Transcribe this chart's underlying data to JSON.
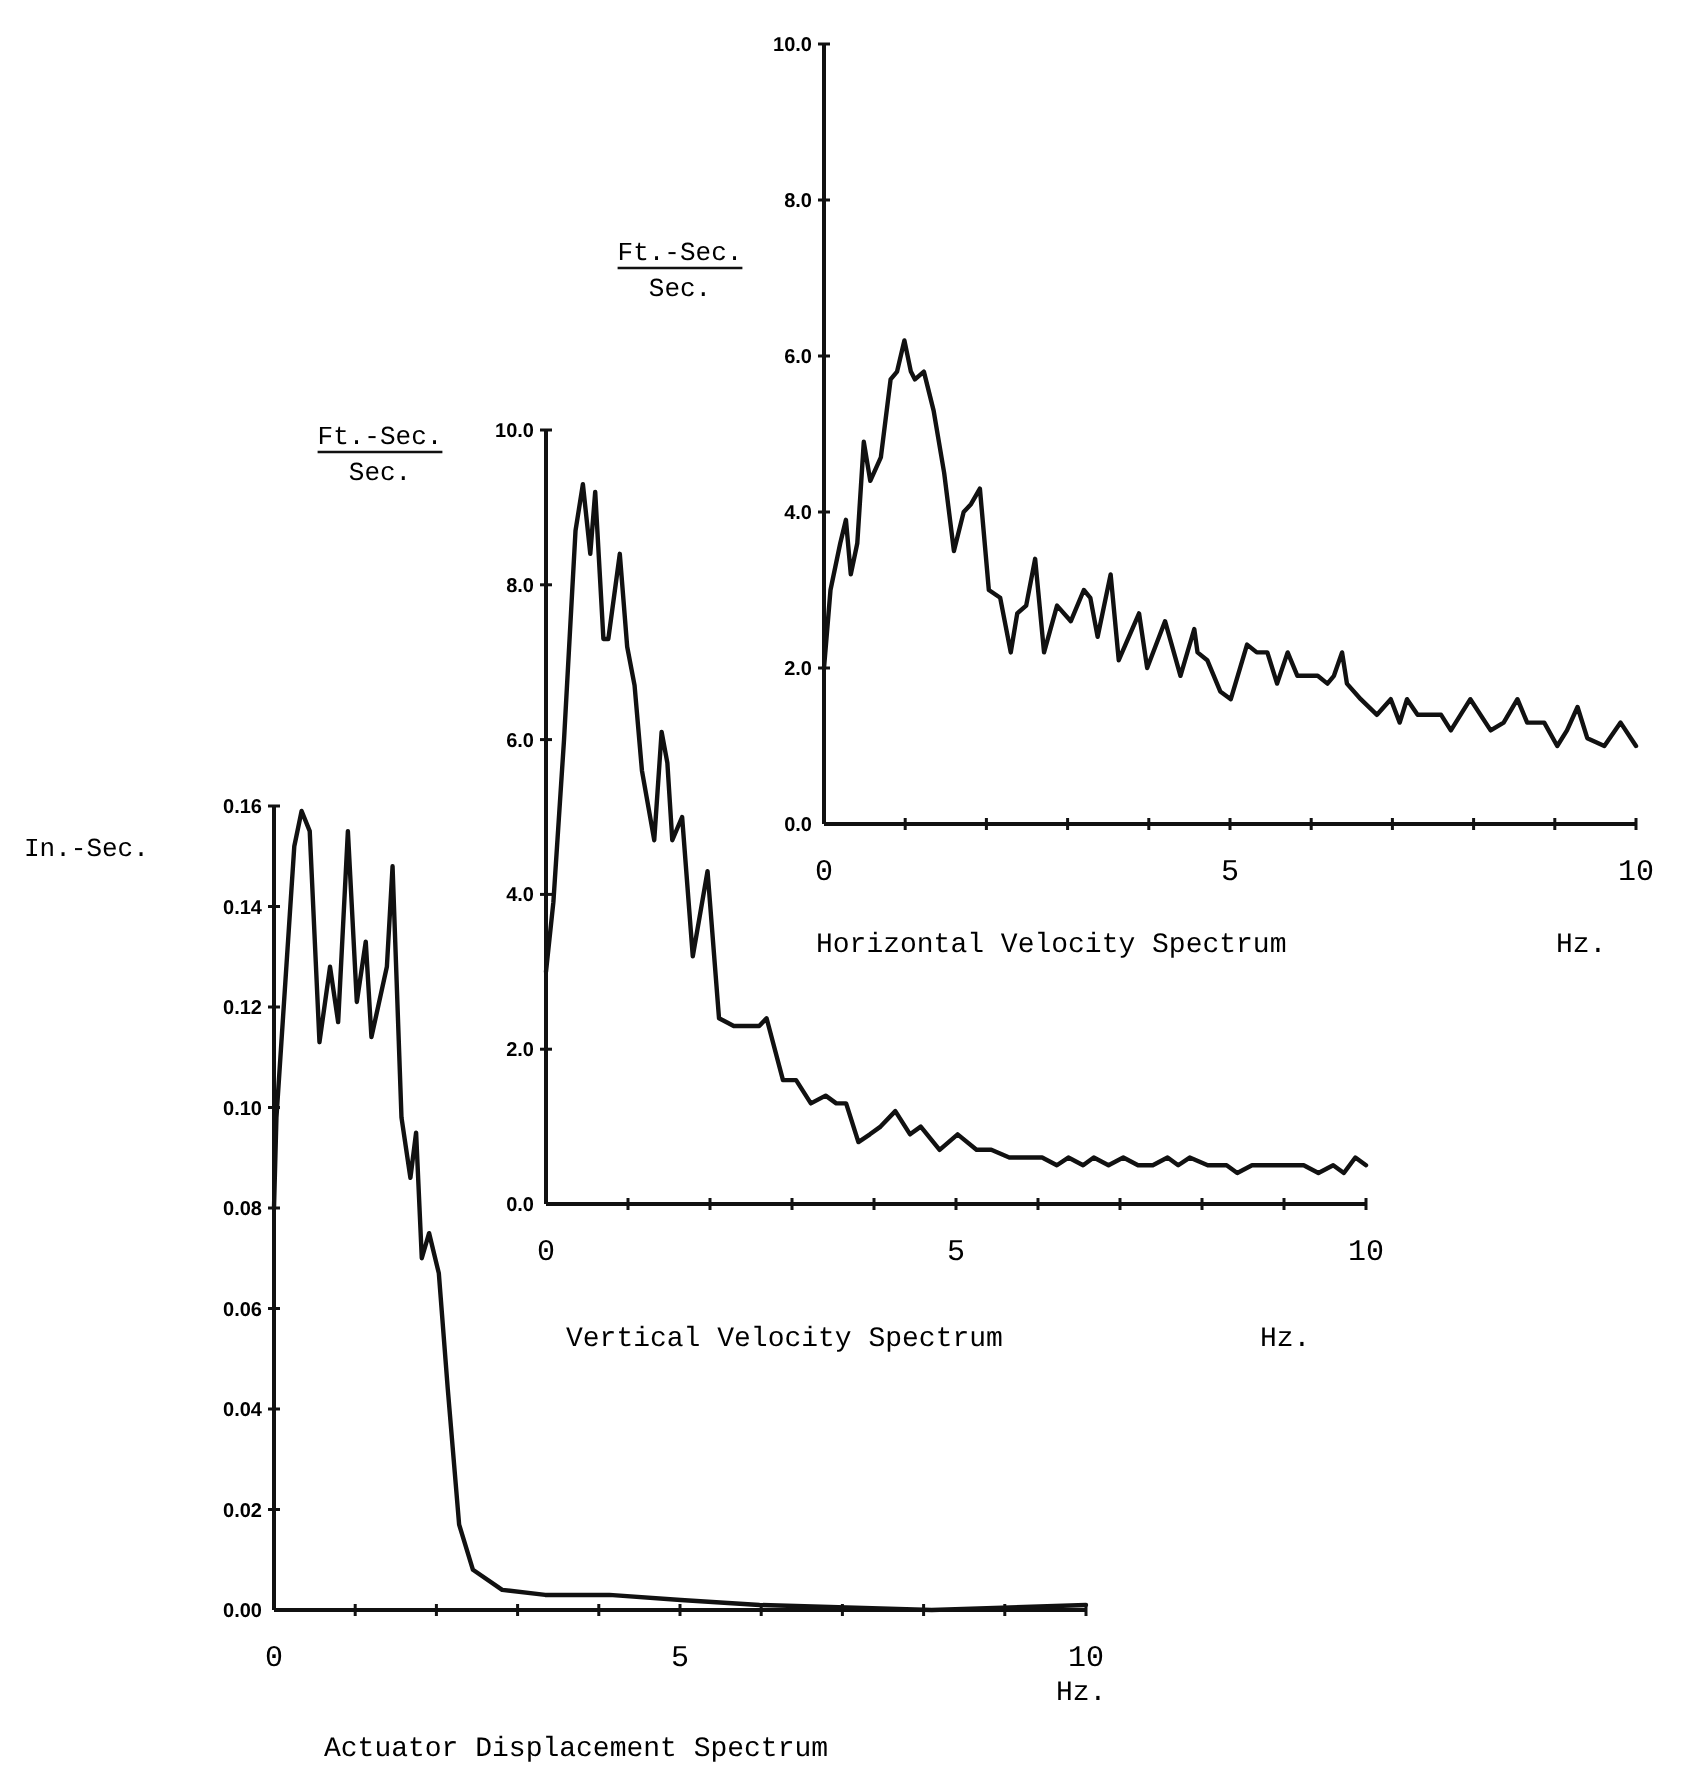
{
  "chart_data": [
    {
      "type": "line",
      "title": "Horizontal Velocity Spectrum",
      "xlabel": "Hz.",
      "ylabel": "Ft.-Sec.\nSec.",
      "color": "#111111",
      "x": [
        0,
        0.08,
        0.2,
        0.27,
        0.33,
        0.41,
        0.49,
        0.57,
        0.7,
        0.82,
        0.9,
        0.99,
        1.07,
        1.12,
        1.23,
        1.35,
        1.48,
        1.6,
        1.72,
        1.81,
        1.92,
        2.03,
        2.17,
        2.3,
        2.38,
        2.49,
        2.6,
        2.71,
        2.87,
        3.04,
        3.2,
        3.28,
        3.37,
        3.53,
        3.63,
        3.88,
        3.98,
        4.2,
        4.39,
        4.56,
        4.6,
        4.72,
        4.88,
        5.01,
        5.21,
        5.33,
        5.46,
        5.58,
        5.71,
        5.83,
        6.08,
        6.2,
        6.28,
        6.38,
        6.44,
        6.61,
        6.81,
        6.98,
        7.09,
        7.18,
        7.31,
        7.6,
        7.72,
        7.96,
        8.21,
        8.37,
        8.54,
        8.66,
        8.87,
        9.03,
        9.15,
        9.28,
        9.4,
        9.61,
        9.81,
        10
      ],
      "values": [
        2.0,
        3.0,
        3.6,
        3.9,
        3.2,
        3.6,
        4.9,
        4.4,
        4.7,
        5.7,
        5.8,
        6.2,
        5.8,
        5.7,
        5.8,
        5.3,
        4.5,
        3.5,
        4.0,
        4.1,
        4.3,
        3.0,
        2.9,
        2.2,
        2.7,
        2.8,
        3.4,
        2.2,
        2.8,
        2.6,
        3.0,
        2.9,
        2.4,
        3.2,
        2.1,
        2.7,
        2.0,
        2.6,
        1.9,
        2.5,
        2.2,
        2.1,
        1.7,
        1.6,
        2.3,
        2.2,
        2.2,
        1.8,
        2.2,
        1.9,
        1.9,
        1.8,
        1.9,
        2.2,
        1.8,
        1.6,
        1.4,
        1.6,
        1.3,
        1.6,
        1.4,
        1.4,
        1.2,
        1.6,
        1.2,
        1.3,
        1.6,
        1.3,
        1.3,
        1.0,
        1.2,
        1.5,
        1.1,
        1.0,
        1.3,
        1.0
      ],
      "xlim": [
        0,
        10
      ],
      "ylim": [
        0,
        10
      ],
      "xticks": [
        0,
        {
          "value": 1,
          "label": null
        },
        {
          "value": 2,
          "label": null
        },
        {
          "value": 3,
          "label": null
        },
        {
          "value": 4,
          "label": null
        },
        5,
        {
          "value": 6,
          "label": null
        },
        {
          "value": 7,
          "label": null
        },
        {
          "value": 8,
          "label": null
        },
        {
          "value": 9,
          "label": null
        },
        10
      ],
      "yticks": [
        {
          "value": 0,
          "label": "0.0"
        },
        {
          "value": 2,
          "label": "2.0"
        },
        {
          "value": 4,
          "label": "4.0"
        },
        {
          "value": 6,
          "label": "6.0"
        },
        {
          "value": 8,
          "label": "8.0"
        },
        {
          "value": 10,
          "label": "10.0"
        }
      ]
    },
    {
      "type": "line",
      "title": "Vertical Velocity Spectrum",
      "xlabel": "Hz.",
      "ylabel": "Ft.-Sec.\nSec.",
      "color": "#111111",
      "x": [
        0,
        0.09,
        0.22,
        0.36,
        0.45,
        0.54,
        0.6,
        0.7,
        0.76,
        0.9,
        0.99,
        1.08,
        1.17,
        1.32,
        1.41,
        1.48,
        1.54,
        1.66,
        1.79,
        1.97,
        2.11,
        2.29,
        2.6,
        2.69,
        2.89,
        3.05,
        3.23,
        3.41,
        3.54,
        3.66,
        3.81,
        3.95,
        4.08,
        4.26,
        4.44,
        4.57,
        4.8,
        5.02,
        5.25,
        5.43,
        5.65,
        5.83,
        6.05,
        6.23,
        6.37,
        6.55,
        6.68,
        6.86,
        7.04,
        7.22,
        7.4,
        7.58,
        7.71,
        7.85,
        8.07,
        8.3,
        8.43,
        8.61,
        8.97,
        9.24,
        9.42,
        9.6,
        9.73,
        9.87,
        10
      ],
      "values": [
        3.0,
        3.9,
        6.0,
        8.7,
        9.3,
        8.4,
        9.2,
        7.3,
        7.3,
        8.4,
        7.2,
        6.7,
        5.6,
        4.7,
        6.1,
        5.7,
        4.7,
        5.0,
        3.2,
        4.3,
        2.4,
        2.3,
        2.3,
        2.4,
        1.6,
        1.6,
        1.3,
        1.4,
        1.3,
        1.3,
        0.8,
        0.9,
        1.0,
        1.2,
        0.9,
        1.0,
        0.7,
        0.9,
        0.7,
        0.7,
        0.6,
        0.6,
        0.6,
        0.5,
        0.6,
        0.5,
        0.6,
        0.5,
        0.6,
        0.5,
        0.5,
        0.6,
        0.5,
        0.6,
        0.5,
        0.5,
        0.4,
        0.5,
        0.5,
        0.5,
        0.4,
        0.5,
        0.4,
        0.6,
        0.5
      ],
      "xlim": [
        0,
        10
      ],
      "ylim": [
        0,
        10
      ],
      "xticks": [
        0,
        {
          "value": 1,
          "label": null
        },
        {
          "value": 2,
          "label": null
        },
        {
          "value": 3,
          "label": null
        },
        {
          "value": 4,
          "label": null
        },
        5,
        {
          "value": 6,
          "label": null
        },
        {
          "value": 7,
          "label": null
        },
        {
          "value": 8,
          "label": null
        },
        {
          "value": 9,
          "label": null
        },
        10
      ],
      "yticks": [
        {
          "value": 0,
          "label": "0.0"
        },
        {
          "value": 2,
          "label": "2.0"
        },
        {
          "value": 4,
          "label": "4.0"
        },
        {
          "value": 6,
          "label": "6.0"
        },
        {
          "value": 8,
          "label": "8.0"
        },
        {
          "value": 10,
          "label": "10.0"
        }
      ]
    },
    {
      "type": "line",
      "title": "Actuator Displacement Spectrum",
      "xlabel": "Hz.",
      "ylabel": "In.-Sec.",
      "color": "#111111",
      "x": [
        0,
        0.03,
        0.25,
        0.34,
        0.44,
        0.56,
        0.69,
        0.79,
        0.91,
        1.02,
        1.13,
        1.2,
        1.39,
        1.46,
        1.57,
        1.68,
        1.75,
        1.82,
        1.91,
        2.03,
        2.14,
        2.28,
        2.45,
        2.81,
        3.34,
        4.13,
        5.01,
        5.98,
        8.1,
        10
      ],
      "values": [
        0.08,
        0.098,
        0.152,
        0.159,
        0.155,
        0.113,
        0.128,
        0.117,
        0.155,
        0.121,
        0.133,
        0.114,
        0.128,
        0.148,
        0.098,
        0.086,
        0.095,
        0.07,
        0.075,
        0.067,
        0.044,
        0.017,
        0.008,
        0.004,
        0.003,
        0.003,
        0.002,
        0.001,
        0.0,
        0.001
      ],
      "xlim": [
        0,
        10
      ],
      "ylim": [
        0,
        0.16
      ],
      "xticks": [
        0,
        {
          "value": 1,
          "label": null
        },
        {
          "value": 2,
          "label": null
        },
        {
          "value": 3,
          "label": null
        },
        {
          "value": 4,
          "label": null
        },
        5,
        {
          "value": 6,
          "label": null
        },
        {
          "value": 7,
          "label": null
        },
        {
          "value": 8,
          "label": null
        },
        {
          "value": 9,
          "label": null
        },
        10
      ],
      "yticks": [
        {
          "value": 0,
          "label": "0.00"
        },
        {
          "value": 0.02,
          "label": "0.02"
        },
        {
          "value": 0.04,
          "label": "0.04"
        },
        {
          "value": 0.06,
          "label": "0.06"
        },
        {
          "value": 0.08,
          "label": "0.08"
        },
        {
          "value": 0.1,
          "label": "0.10"
        },
        {
          "value": 0.12,
          "label": "0.12"
        },
        {
          "value": 0.14,
          "label": "0.14"
        },
        {
          "value": 0.16,
          "label": "0.16"
        }
      ]
    }
  ]
}
